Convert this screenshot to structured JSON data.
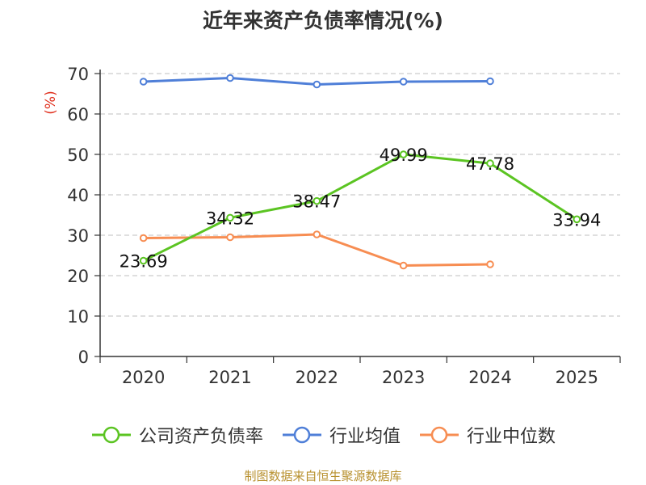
{
  "chart_data": {
    "type": "line",
    "title": "近年来资产负债率情况(%)",
    "ylabel": "(%)",
    "categories": [
      "2020",
      "2021",
      "2022",
      "2023",
      "2024",
      "2025"
    ],
    "y_ticks": [
      "0",
      "10",
      "20",
      "30",
      "40",
      "50",
      "60",
      "70"
    ],
    "ylim": [
      0,
      70
    ],
    "grid": true,
    "legend_position": "bottom",
    "series": [
      {
        "name": "公司资产负债率",
        "color": "#5bc422",
        "values": [
          23.69,
          34.32,
          38.47,
          49.99,
          47.78,
          33.94
        ],
        "labels": [
          "23.69",
          "34.32",
          "38.47",
          "49.99",
          "47.78",
          "33.94"
        ]
      },
      {
        "name": "行业均值",
        "color": "#4f7fd8",
        "values": [
          68.0,
          68.9,
          67.3,
          68.0,
          68.1,
          null
        ]
      },
      {
        "name": "行业中位数",
        "color": "#f78d52",
        "values": [
          29.3,
          29.5,
          30.2,
          22.5,
          22.8,
          null
        ]
      }
    ]
  },
  "source_note": "制图数据来自恒生聚源数据库"
}
